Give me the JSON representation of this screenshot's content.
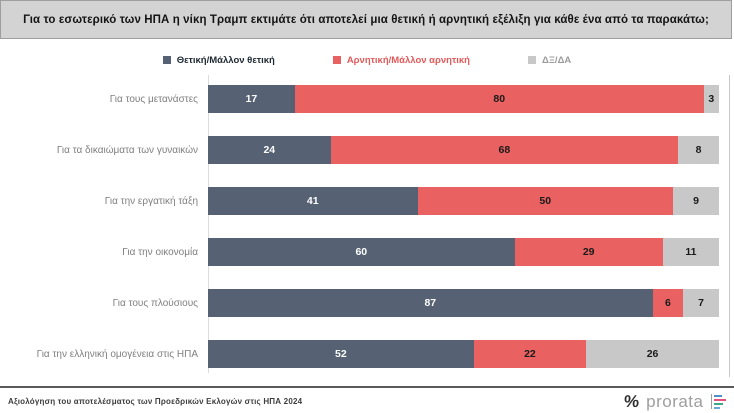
{
  "title": "Για το εσωτερικό των ΗΠΑ η νίκη Τραμπ εκτιμάτε ότι αποτελεί μια θετική ή αρνητική εξέλιξη για κάθε ένα από τα παρακάτω;",
  "chart_data": {
    "type": "bar",
    "orientation": "horizontal",
    "stacked": true,
    "xlim": [
      0,
      100
    ],
    "legend_position": "top",
    "value_labels": true,
    "categories": [
      "Για τους μετανάστες",
      "Για τα δικαιώματα των γυναικών",
      "Για την εργατική τάξη",
      "Για την οικονομία",
      "Για τους πλούσιους",
      "Για την ελληνική ομογένεια στις ΗΠΑ"
    ],
    "series": [
      {
        "name": "Θετική/Μάλλον θετική",
        "color": "#566273",
        "legend_text_color": "#1f2933",
        "value_label_color": "#ffffff",
        "values": [
          17,
          24,
          41,
          60,
          87,
          52
        ]
      },
      {
        "name": "Αρνητική/Μάλλον αρνητική",
        "color": "#e96161",
        "legend_text_color": "#e05a5a",
        "value_label_color": "#1a1a1a",
        "values": [
          80,
          68,
          50,
          29,
          6,
          22
        ]
      },
      {
        "name": "ΔΞ/ΔΑ",
        "color": "#c8c8c8",
        "legend_text_color": "#9b9b9b",
        "value_label_color": "#1a1a1a",
        "values": [
          3,
          8,
          9,
          11,
          7,
          26
        ]
      }
    ]
  },
  "footer": {
    "source": "Αξιολόγηση του αποτελέσματος των Προεδρικών Εκλογών στις ΗΠΑ 2024",
    "logo": {
      "percent_symbol": "%",
      "brand": "prorata"
    }
  }
}
